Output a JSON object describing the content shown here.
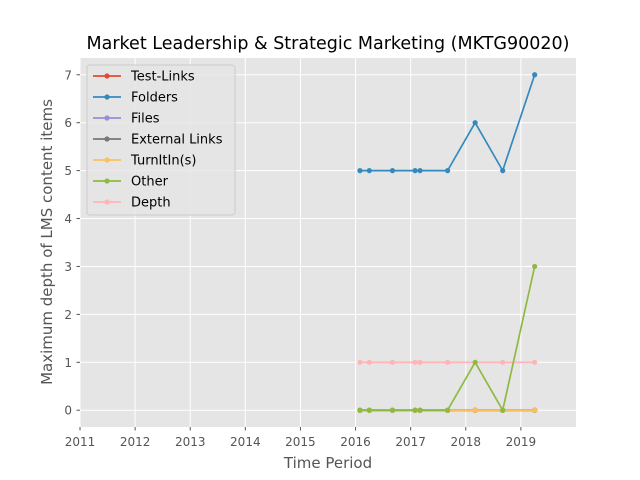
{
  "chart_data": {
    "type": "line",
    "title": "Market Leadership & Strategic Marketing (MKTG90020)",
    "xlabel": "Time Period",
    "ylabel": "Maximum depth of LMS content items",
    "xlim": [
      2011,
      2020.0
    ],
    "ylim": [
      -0.35,
      7.35
    ],
    "x_ticks": [
      2011,
      2012,
      2013,
      2014,
      2015,
      2016,
      2017,
      2018,
      2019
    ],
    "y_ticks": [
      0,
      1,
      2,
      3,
      4,
      5,
      6,
      7
    ],
    "grid": true,
    "legend_position": "upper-left",
    "x": [
      2016.08,
      2016.25,
      2016.67,
      2017.08,
      2017.17,
      2017.67,
      2018.17,
      2018.67,
      2019.25
    ],
    "series": [
      {
        "name": "Test-Links",
        "color": "#E24A33",
        "values": [
          0,
          0,
          0,
          0,
          0,
          0,
          0,
          0,
          0
        ]
      },
      {
        "name": "Folders",
        "color": "#348ABD",
        "values": [
          5,
          5,
          5,
          5,
          5,
          5,
          6,
          5,
          7
        ]
      },
      {
        "name": "Files",
        "color": "#988ED5",
        "values": [
          0,
          0,
          0,
          0,
          0,
          0,
          0,
          0,
          0
        ]
      },
      {
        "name": "External Links",
        "color": "#777777",
        "values": [
          0,
          0,
          0,
          0,
          0,
          0,
          0,
          0,
          0
        ]
      },
      {
        "name": "TurnItIn(s)",
        "color": "#FBC15E",
        "values": [
          0,
          0,
          0,
          0,
          0,
          0,
          0,
          0,
          0
        ]
      },
      {
        "name": "Other",
        "color": "#8EBA42",
        "values": [
          0,
          0,
          0,
          0,
          0,
          0,
          1,
          0,
          3
        ]
      },
      {
        "name": "Depth",
        "color": "#FFB5B8",
        "values": [
          1,
          1,
          1,
          1,
          1,
          1,
          1,
          1,
          1
        ]
      }
    ],
    "draw_order": [
      "Test-Links",
      "Folders",
      "Files",
      "External Links",
      "Depth",
      "TurnItIn(s)",
      "Other"
    ]
  }
}
